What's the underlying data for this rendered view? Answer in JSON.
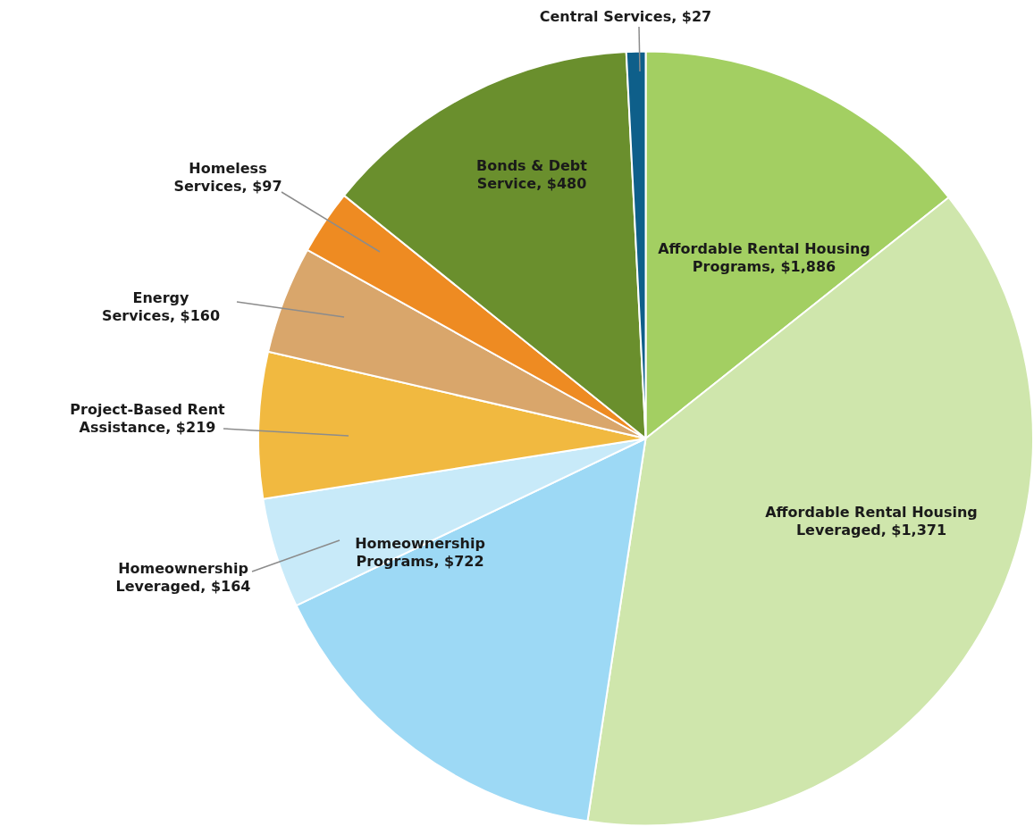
{
  "chart_data": {
    "type": "pie",
    "categories": [
      "Affordable Rental Housing Programs, $1,886",
      "Affordable Rental Housing Leveraged, $1,371",
      "Homeownership Programs, $722",
      "Homeownership Leveraged, $164",
      "Project-Based Rent Assistance, $219",
      "Energy Services, $160",
      "Homeless Services, $97",
      "Bonds & Debt Service, $480",
      "Central Services, $27"
    ],
    "values": [
      14.3,
      38.1,
      15.5,
      4.6,
      6.1,
      4.5,
      2.7,
      13.4,
      0.8
    ],
    "colors": [
      "#a3cf62",
      "#cfe6ac",
      "#9dd9f5",
      "#c8eaf9",
      "#f1b940",
      "#d9a66b",
      "#ee8b22",
      "#6a8f2d",
      "#0e5f8a"
    ],
    "legend": false
  }
}
